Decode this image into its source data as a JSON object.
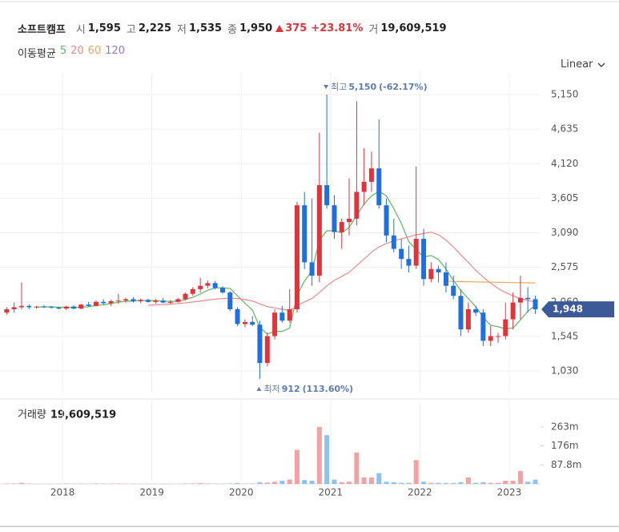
{
  "chart_data": {
    "type": "candlestick",
    "header": {
      "name": "소프트캠프",
      "stats": [
        {
          "key": "시",
          "value": 1595,
          "label": "1,595"
        },
        {
          "key": "고",
          "value": 2225,
          "label": "2,225"
        },
        {
          "key": "저",
          "value": 1535,
          "label": "1,535"
        },
        {
          "key": "종",
          "value": 1950,
          "label": "1,950"
        }
      ],
      "change": {
        "value": 375,
        "direction": "up",
        "pct": {
          "value": 23.81,
          "label": "+23.81%"
        }
      },
      "volume": {
        "key": "거",
        "value": 19609519,
        "label": "19,609,519"
      }
    },
    "legend_title": "이동평균",
    "scale": "Linear",
    "up_color": "#e0343c",
    "down_color": "#1f6fe0",
    "volume_up_color": "#f2a2a2",
    "volume_down_color": "#8fc0f2",
    "x": [
      2017.375,
      2017.458,
      2017.542,
      2017.625,
      2017.708,
      2017.792,
      2017.875,
      2017.958,
      2018.042,
      2018.125,
      2018.208,
      2018.292,
      2018.375,
      2018.458,
      2018.542,
      2018.625,
      2018.708,
      2018.792,
      2018.875,
      2018.958,
      2019.042,
      2019.125,
      2019.208,
      2019.292,
      2019.375,
      2019.458,
      2019.542,
      2019.625,
      2019.708,
      2019.792,
      2019.875,
      2019.958,
      2020.042,
      2020.125,
      2020.208,
      2020.292,
      2020.375,
      2020.458,
      2020.542,
      2020.625,
      2020.708,
      2020.792,
      2020.875,
      2020.958,
      2021.042,
      2021.125,
      2021.208,
      2021.292,
      2021.375,
      2021.458,
      2021.542,
      2021.625,
      2021.708,
      2021.792,
      2021.875,
      2021.958,
      2022.042,
      2022.125,
      2022.208,
      2022.292,
      2022.375,
      2022.458,
      2022.542,
      2022.625,
      2022.708,
      2022.792,
      2022.875,
      2022.958,
      2023.042,
      2023.125,
      2023.208,
      2023.292
    ],
    "open": [
      1900,
      1950,
      1980,
      2000,
      1980,
      1990,
      1985,
      1975,
      1960,
      1990,
      1960,
      2020,
      2000,
      2060,
      2040,
      2070,
      2080,
      2100,
      2070,
      2090,
      2060,
      2080,
      2050,
      2060,
      2100,
      2180,
      2250,
      2300,
      2340,
      2270,
      2200,
      1950,
      1730,
      1760,
      1720,
      1150,
      1550,
      1900,
      1780,
      1950,
      3500,
      2650,
      2450,
      3800,
      3500,
      3100,
      3250,
      3300,
      3700,
      3850,
      4050,
      3500,
      3050,
      2850,
      2700,
      2600,
      3000,
      2400,
      2550,
      2500,
      2300,
      2150,
      1650,
      1950,
      1900,
      1480,
      1550,
      1550,
      1800,
      2050,
      2120,
      2100
    ],
    "high": [
      1980,
      2050,
      2350,
      2020,
      2000,
      2010,
      2000,
      1990,
      2000,
      2010,
      2030,
      2060,
      2080,
      2100,
      2090,
      2180,
      2120,
      2130,
      2110,
      2110,
      2100,
      2120,
      2090,
      2120,
      2200,
      2280,
      2420,
      2380,
      2370,
      2290,
      2220,
      1980,
      1800,
      1850,
      1780,
      1600,
      1950,
      2000,
      2250,
      3550,
      3700,
      3600,
      4580,
      5150,
      3650,
      3300,
      3900,
      5050,
      4350,
      4300,
      4780,
      3600,
      3300,
      3000,
      2900,
      4080,
      3150,
      2650,
      2600,
      2650,
      2450,
      2250,
      2050,
      2000,
      1950,
      1700,
      1600,
      2050,
      2200,
      2450,
      2280,
      2150
    ],
    "low": [
      1870,
      1900,
      1950,
      1950,
      1960,
      1970,
      1960,
      1950,
      1940,
      1950,
      1950,
      1990,
      1990,
      2020,
      2000,
      2030,
      2050,
      2050,
      2040,
      2050,
      2030,
      2040,
      2020,
      2050,
      2080,
      2150,
      2200,
      2260,
      2250,
      2180,
      1920,
      1700,
      1680,
      1700,
      912,
      1100,
      1500,
      1750,
      1750,
      1900,
      2550,
      2300,
      2350,
      3450,
      3000,
      2850,
      3050,
      3200,
      3500,
      3700,
      3450,
      2950,
      2800,
      2550,
      2500,
      2550,
      2300,
      2350,
      2350,
      2200,
      2100,
      1550,
      1600,
      1850,
      1400,
      1400,
      1450,
      1500,
      1650,
      1800,
      1900,
      1880
    ],
    "close": [
      1950,
      1980,
      2000,
      1980,
      1990,
      1985,
      1975,
      1960,
      1990,
      1960,
      2020,
      2000,
      2060,
      2040,
      2070,
      2080,
      2100,
      2070,
      2090,
      2060,
      2080,
      2050,
      2060,
      2100,
      2180,
      2250,
      2300,
      2340,
      2270,
      2200,
      1950,
      1730,
      1760,
      1720,
      1150,
      1550,
      1900,
      1780,
      1950,
      3500,
      2650,
      2450,
      3800,
      3500,
      3100,
      3250,
      3300,
      3700,
      3850,
      4050,
      3500,
      3050,
      2850,
      2700,
      2600,
      3000,
      2400,
      2550,
      2500,
      2300,
      2150,
      1650,
      1950,
      1900,
      1480,
      1550,
      1550,
      1800,
      2050,
      2120,
      2100,
      1950
    ],
    "series": [
      {
        "name": "5",
        "color": "#5cb85c",
        "values": [
          null,
          null,
          null,
          null,
          1980,
          1987,
          1986,
          1980,
          1980,
          1977,
          1982,
          1987,
          2006,
          2016,
          2038,
          2054,
          2070,
          2072,
          2082,
          2080,
          2080,
          2070,
          2066,
          2070,
          2094,
          2128,
          2178,
          2234,
          2268,
          2270,
          2260,
          2150,
          2040,
          1940,
          1680,
          1580,
          1620,
          1620,
          1670,
          2160,
          2370,
          2520,
          2980,
          3120,
          3120,
          3090,
          3170,
          3350,
          3520,
          3640,
          3710,
          3640,
          3450,
          3230,
          2960,
          2840,
          2730,
          2750,
          2690,
          2550,
          2380,
          2230,
          2110,
          1990,
          1830,
          1710,
          1690,
          1660,
          1670,
          1790,
          1920,
          2010
        ]
      },
      {
        "name": "20",
        "color": "#ec8a8a",
        "values": [
          null,
          null,
          null,
          null,
          null,
          null,
          null,
          null,
          null,
          null,
          null,
          null,
          null,
          null,
          null,
          null,
          null,
          null,
          null,
          2010,
          2015,
          2020,
          2028,
          2035,
          2045,
          2058,
          2072,
          2088,
          2100,
          2110,
          2115,
          2110,
          2095,
          2075,
          2030,
          1990,
          1970,
          1950,
          1935,
          2000,
          2060,
          2110,
          2200,
          2300,
          2380,
          2440,
          2500,
          2600,
          2700,
          2800,
          2880,
          2930,
          2970,
          3000,
          3030,
          3060,
          3080,
          3100,
          3060,
          2980,
          2880,
          2760,
          2650,
          2530,
          2430,
          2340,
          2260,
          2200,
          2150,
          2110,
          2080,
          2060
        ]
      },
      {
        "name": "60",
        "color": "#f0a35a",
        "values": [
          null,
          null,
          null,
          null,
          null,
          null,
          null,
          null,
          null,
          null,
          null,
          null,
          null,
          null,
          null,
          null,
          null,
          null,
          null,
          null,
          null,
          null,
          null,
          null,
          null,
          null,
          null,
          null,
          null,
          null,
          null,
          null,
          null,
          null,
          null,
          null,
          null,
          null,
          null,
          null,
          null,
          null,
          null,
          null,
          null,
          null,
          null,
          null,
          null,
          null,
          null,
          null,
          null,
          null,
          null,
          null,
          null,
          null,
          null,
          2370,
          2365,
          2362,
          2360,
          2358,
          2356,
          2354,
          2352,
          2350,
          2348,
          2346,
          2344,
          2342
        ]
      },
      {
        "name": "120",
        "color": "#9a6fe0",
        "values": [
          null,
          null,
          null,
          null,
          null,
          null,
          null,
          null,
          null,
          null,
          null,
          null,
          null,
          null,
          null,
          null,
          null,
          null,
          null,
          null,
          null,
          null,
          null,
          null,
          null,
          null,
          null,
          null,
          null,
          null,
          null,
          null,
          null,
          null,
          null,
          null,
          null,
          null,
          null,
          null,
          null,
          null,
          null,
          null,
          null,
          null,
          null,
          null,
          null,
          null,
          null,
          null,
          null,
          null,
          null,
          null,
          null,
          null,
          null,
          null,
          null,
          null,
          null,
          null,
          null,
          null,
          null,
          null,
          null,
          null,
          null,
          null
        ]
      }
    ],
    "xlim": [
      2017.3,
      2023.35
    ],
    "xticks": [
      2018,
      2019,
      2020,
      2021,
      2022,
      2023
    ],
    "ylim": [
      708,
      5425
    ],
    "yticks": [
      {
        "value": 5150,
        "label": "5,150"
      },
      {
        "value": 4635,
        "label": "4,635"
      },
      {
        "value": 4120,
        "label": "4,120"
      },
      {
        "value": 3605,
        "label": "3,605"
      },
      {
        "value": 3090,
        "label": "3,090"
      },
      {
        "value": 2575,
        "label": "2,575"
      },
      {
        "value": 2060,
        "label": "2,060"
      },
      {
        "value": 1545,
        "label": "1,545"
      },
      {
        "value": 1030,
        "label": "1,030"
      }
    ],
    "grid": true,
    "current_price": {
      "value": 1948,
      "label": "1,948"
    },
    "annotations": [
      {
        "text": "최고",
        "value": {
          "value": 5150,
          "label": "5,150"
        },
        "change": "(-62.17%)",
        "direction": "down"
      },
      {
        "text": "최저",
        "value": 912,
        "change": "(113.60%)",
        "direction": "up"
      }
    ],
    "volume": {
      "title": "거래량",
      "total": {
        "value": 19609519,
        "label": "19,609,519"
      },
      "values": [
        2,
        2,
        5,
        1.5,
        1,
        1,
        1,
        1,
        1.5,
        1,
        1.5,
        1,
        2,
        1.5,
        1.5,
        2,
        1,
        1,
        1,
        1,
        1,
        1,
        1,
        1,
        2,
        2,
        4,
        2,
        1.5,
        1,
        2,
        4,
        2,
        2,
        8,
        6,
        10,
        15,
        20,
        157,
        18,
        15,
        263,
        225,
        20,
        8,
        10,
        145,
        30,
        30,
        50,
        10,
        8,
        5,
        5,
        110,
        10,
        5,
        5,
        4,
        4,
        8,
        30,
        5,
        8,
        5,
        5,
        15,
        15,
        60,
        10,
        19.6
      ],
      "ylim": [
        0,
        366
      ],
      "yticks": [
        {
          "value": 87.8,
          "label": "87.8m"
        },
        {
          "value": 176,
          "label": "176m"
        },
        {
          "value": 263,
          "label": "263m"
        }
      ]
    }
  }
}
